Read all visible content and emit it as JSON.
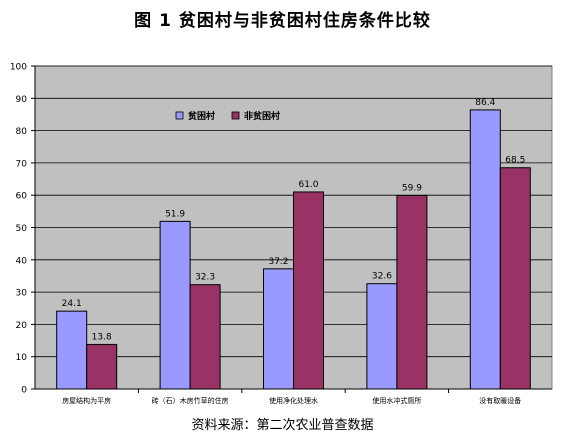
{
  "chart_data": {
    "type": "bar",
    "title": "图 1   贫困村与非贫困村住房条件比较",
    "source": "资料来源：第二次农业普查数据",
    "categories": [
      "房屋结构为平房",
      "砖（石）木房竹草的住房",
      "使用净化处理水",
      "使用水冲式厕所",
      "没有取暖设备"
    ],
    "series": [
      {
        "name": "贫困村",
        "values": [
          24.1,
          51.9,
          37.2,
          32.6,
          86.4
        ],
        "color": "#9999ff"
      },
      {
        "name": "非贫困村",
        "values": [
          13.8,
          32.3,
          61.0,
          59.9,
          68.5
        ],
        "color": "#993366"
      }
    ],
    "value_labels": [
      [
        "24.1",
        "51.9",
        "37.2",
        "32.6",
        "86.4"
      ],
      [
        "13.8",
        "32.3",
        "61.0",
        "59.9",
        "68.5"
      ]
    ],
    "ylim": [
      0,
      100
    ],
    "yticks": [
      0,
      10,
      20,
      30,
      40,
      50,
      60,
      70,
      80,
      90,
      100
    ],
    "grid": true,
    "plot_background": "#c0c0c0",
    "legend_position": "top-left inside plot"
  }
}
